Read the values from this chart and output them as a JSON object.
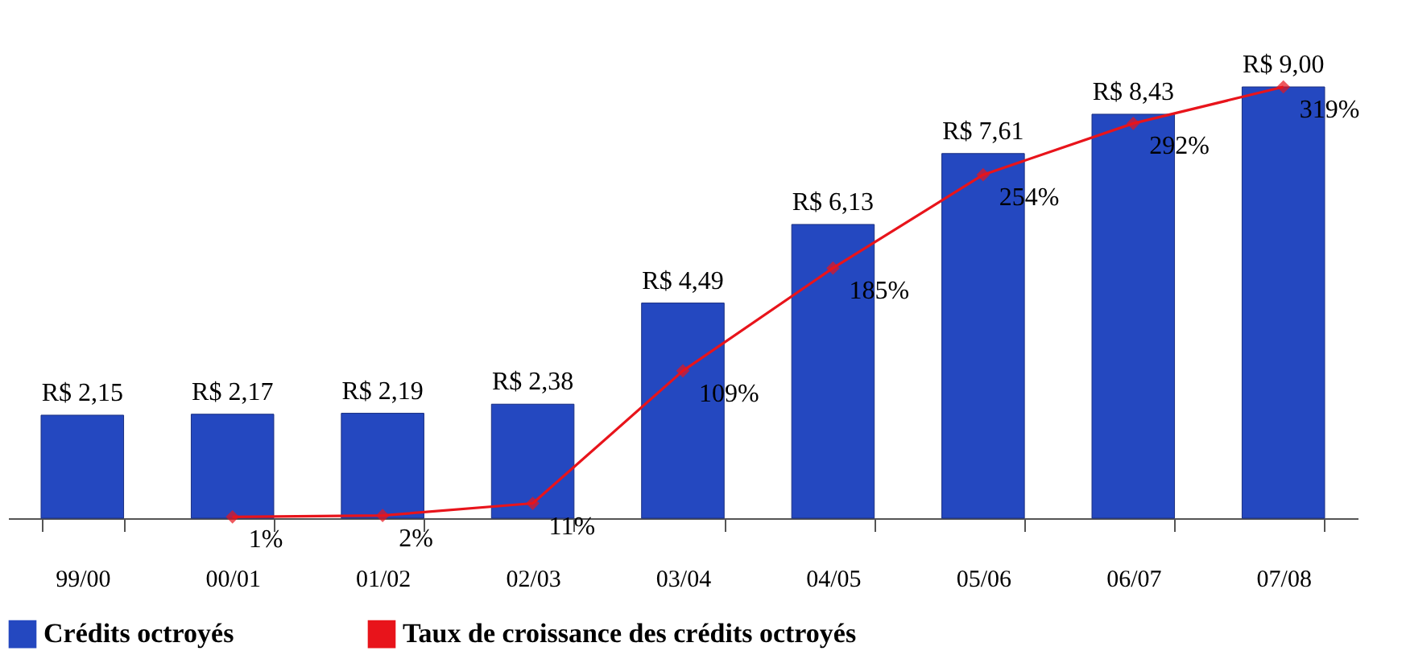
{
  "chart_data": {
    "type": "bar",
    "categories": [
      "99/00",
      "00/01",
      "01/02",
      "02/03",
      "03/04",
      "04/05",
      "05/06",
      "06/07",
      "07/08"
    ],
    "series": [
      {
        "name": "Crédits octroyés",
        "type": "bar",
        "color": "#2448c0",
        "values": [
          2.15,
          2.17,
          2.19,
          2.38,
          4.49,
          6.13,
          7.61,
          8.43,
          9.0
        ],
        "value_labels": [
          "R$ 2,15",
          "R$ 2,17",
          "R$ 2,19",
          "R$ 2,38",
          "R$ 4,49",
          "R$ 6,13",
          "R$ 7,61",
          "R$ 8,43",
          "R$ 9,00"
        ]
      },
      {
        "name": "Taux de croissance des crédits octroyés",
        "type": "line",
        "axis": "y2",
        "color": "#e8141b",
        "marker": "diamond",
        "values": [
          null,
          1,
          2,
          11,
          109,
          185,
          254,
          292,
          319
        ],
        "value_labels": [
          null,
          "1%",
          "2%",
          "11%",
          "109%",
          "185%",
          "254%",
          "292%",
          "319%"
        ]
      }
    ],
    "tick_labels": "x",
    "grid": false,
    "legend": "bottom"
  }
}
